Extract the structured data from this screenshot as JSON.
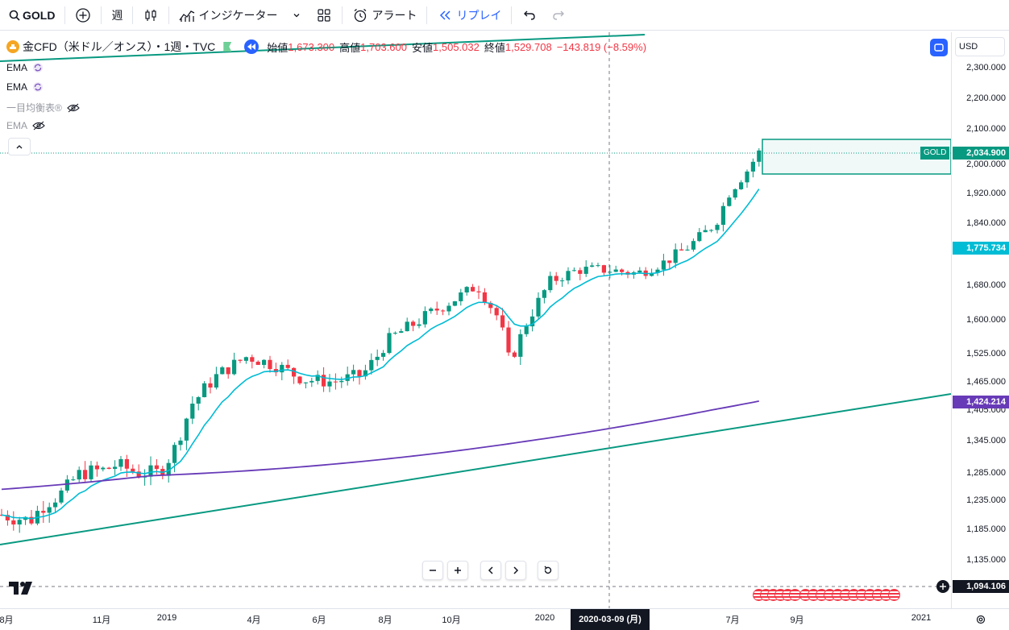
{
  "toolbar": {
    "symbol": "GOLD",
    "interval": "週",
    "indicators": "インジケーター",
    "alert": "アラート",
    "replay": "リプレイ"
  },
  "legend": {
    "name": "金CFD（米ドル／オンス）・1週・TVC",
    "open_label": "始値",
    "open": "1,673.300",
    "high_label": "高値",
    "high": "1,703.600",
    "low_label": "安値",
    "low": "1,505.032",
    "close_label": "終値",
    "close": "1,529.708",
    "change": "−143.819 (−8.59%)"
  },
  "indicators": [
    {
      "name": "EMA",
      "hidden": false
    },
    {
      "name": "EMA",
      "hidden": false
    },
    {
      "name": "一目均衡表®",
      "hidden": true
    },
    {
      "name": "EMA",
      "hidden": true
    }
  ],
  "currency": "USD",
  "price_axis": {
    "labels": [
      "2,300.000",
      "2,200.000",
      "2,100.000",
      "2,000.000",
      "1,920.000",
      "1,840.000",
      "1,680.000",
      "1,600.000",
      "1,525.000",
      "1,465.000",
      "1,405.000",
      "1,345.000",
      "1,285.000",
      "1,235.000",
      "1,185.000",
      "1,135.000"
    ],
    "current_tag": {
      "symbol": "GOLD",
      "value": "2,034.900"
    },
    "ema_fast_tag": "1,775.734",
    "ema_slow_tag": "1,424.214",
    "crosshair_tag": "1,094.106"
  },
  "time_axis": {
    "labels": [
      "8月",
      "11月",
      "2019",
      "4月",
      "6月",
      "8月",
      "10月",
      "2020",
      "7月",
      "9月",
      "2021"
    ],
    "crosshair_date": "2020-03-09 (月)"
  },
  "colors": {
    "up": "#089981",
    "down": "#f23645",
    "ema_fast": "#00bcd4",
    "ema_slow": "#673ab7",
    "trend": "#089981",
    "accent": "#2962ff"
  },
  "chart_data": {
    "type": "candlestick",
    "x_labels": [
      "8月",
      "11月",
      "2019",
      "4月",
      "6月",
      "8月",
      "10月",
      "2020",
      "7月",
      "9月",
      "2021"
    ],
    "last_close": 2034.9,
    "ema_fast_last": 1775.734,
    "ema_slow_last": 1424.214
  }
}
